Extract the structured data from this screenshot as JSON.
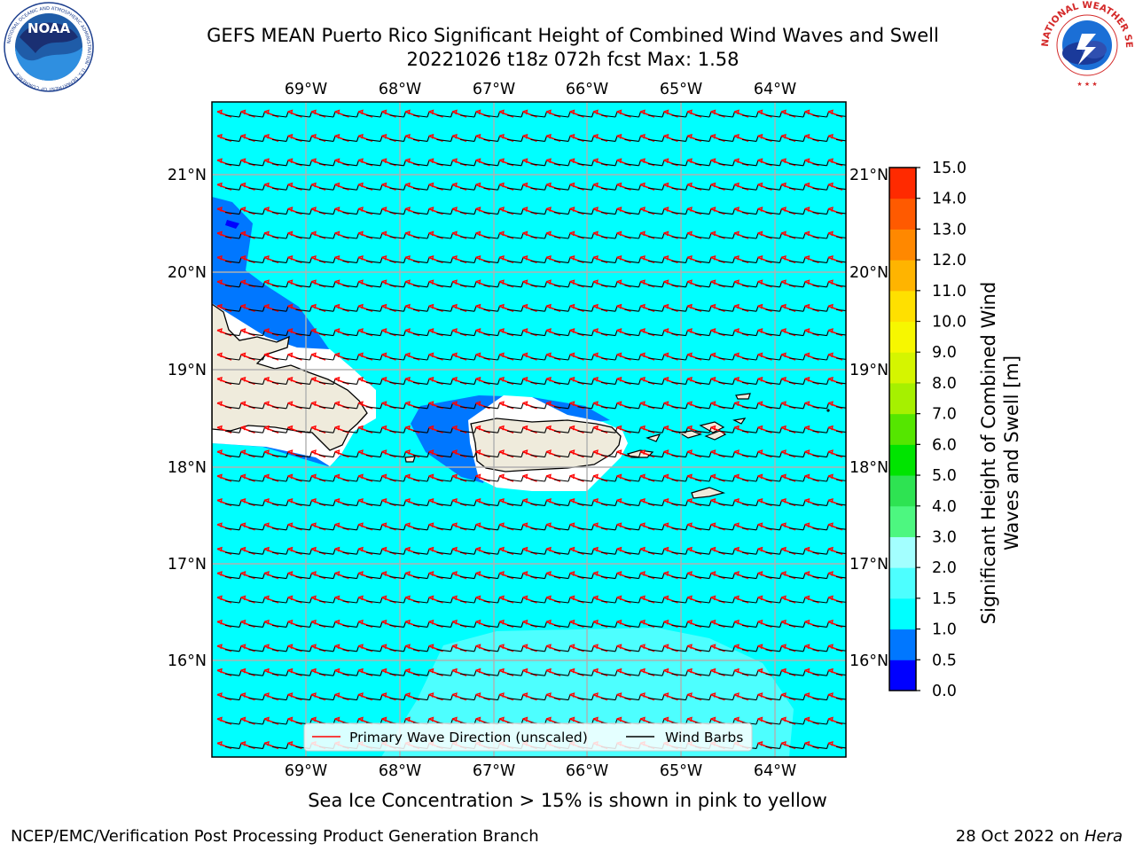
{
  "header": {
    "title_line1": "GEFS MEAN Puerto Rico Significant Height of Combined Wind Waves and Swell",
    "title_line2": "20221026 t18z 072h fcst   Max: 1.58"
  },
  "logos": {
    "noaa": {
      "text": "NOAA",
      "ring_text": "NATIONAL OCEANIC AND ATMOSPHERIC ADMINISTRATION · U.S. DEPARTMENT OF COMMERCE"
    },
    "nws": {
      "ring_text": "NATIONAL WEATHER SERVICE"
    }
  },
  "map": {
    "lon_ticks": [
      "69°W",
      "68°W",
      "67°W",
      "66°W",
      "65°W",
      "64°W"
    ],
    "lat_ticks": [
      "21°N",
      "20°N",
      "19°N",
      "18°N",
      "17°N",
      "16°N"
    ],
    "ocean_color": "#00ffff",
    "land_color": "#efebdc",
    "legend": {
      "wave_label": "Primary Wave Direction (unscaled)",
      "wind_label": "Wind Barbs",
      "wave_color": "#ff0000",
      "wind_color": "#000000"
    }
  },
  "colorbar": {
    "label": "Significant Height of Combined Wind Waves and Swell [m]",
    "levels": [
      0.0,
      0.5,
      1.0,
      1.5,
      2.0,
      3.0,
      4.0,
      5.0,
      6.0,
      7.0,
      8.0,
      9.0,
      10.0,
      11.0,
      12.0,
      13.0,
      14.0,
      15.0
    ],
    "tick_labels": [
      "0.0",
      "0.5",
      "1.0",
      "1.5",
      "2.0",
      "3.0",
      "4.0",
      "5.0",
      "6.0",
      "7.0",
      "8.0",
      "9.0",
      "10.0",
      "11.0",
      "12.0",
      "13.0",
      "14.0",
      "15.0"
    ],
    "colors": [
      "#0000ff",
      "#0077ff",
      "#00ffff",
      "#4dffff",
      "#a3ffff",
      "#4df780",
      "#2ee352",
      "#00e400",
      "#55e600",
      "#a6f000",
      "#d5f500",
      "#f7f700",
      "#ffe000",
      "#ffb400",
      "#ff8800",
      "#ff5a00",
      "#ff2a00"
    ]
  },
  "footnote": "Sea Ice Concentration > 15% is shown in pink to yellow",
  "footer": {
    "left": "NCEP/EMC/Verification Post Processing Product Generation Branch",
    "right_prefix": "28 Oct 2022 on ",
    "right_host": "Hera"
  }
}
